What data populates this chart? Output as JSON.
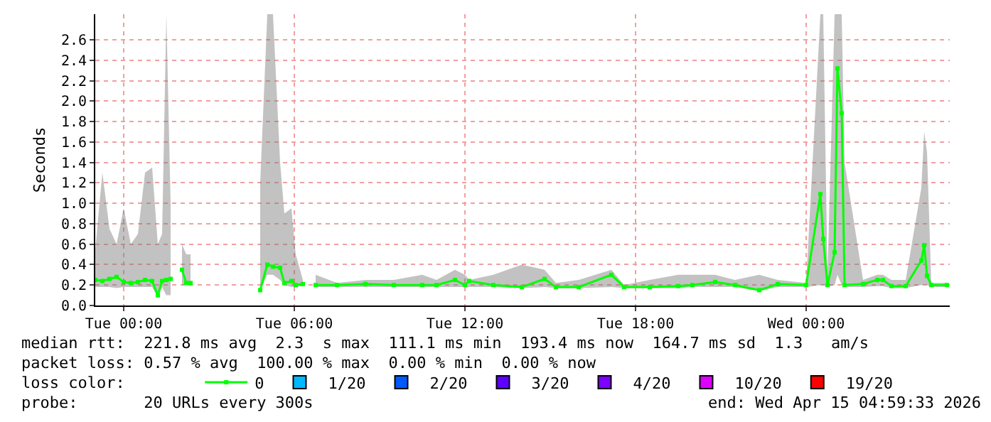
{
  "chart_data": {
    "type": "line",
    "ylabel": "Seconds",
    "x": [
      "2026-04-13T23:00",
      "2026-04-13T23:15",
      "2026-04-13T23:30",
      "2026-04-13T23:45",
      "2026-04-14T00:00",
      "2026-04-14T00:15",
      "2026-04-14T00:30",
      "2026-04-14T00:45",
      "2026-04-14T01:00",
      "2026-04-14T01:12",
      "2026-04-14T01:21",
      "2026-04-14T01:30",
      "2026-04-14T01:39",
      "2026-04-14T01:48",
      "2026-04-14T02:03",
      "2026-04-14T02:12",
      "2026-04-14T02:21",
      "2026-04-14T02:30",
      "2026-04-14T04:48",
      "2026-04-14T05:03",
      "2026-04-14T05:15",
      "2026-04-14T05:30",
      "2026-04-14T05:39",
      "2026-04-14T05:54",
      "2026-04-14T06:03",
      "2026-04-14T06:18",
      "2026-04-14T06:30",
      "2026-04-14T06:45",
      "2026-04-14T07:30",
      "2026-04-14T08:30",
      "2026-04-14T09:30",
      "2026-04-14T10:30",
      "2026-04-14T11:00",
      "2026-04-14T11:39",
      "2026-04-14T12:00",
      "2026-04-14T12:09",
      "2026-04-14T13:00",
      "2026-04-14T14:00",
      "2026-04-14T14:48",
      "2026-04-14T15:12",
      "2026-04-14T16:00",
      "2026-04-14T17:09",
      "2026-04-14T17:36",
      "2026-04-14T18:30",
      "2026-04-14T19:30",
      "2026-04-14T20:00",
      "2026-04-14T20:48",
      "2026-04-14T21:30",
      "2026-04-14T22:21",
      "2026-04-14T23:00",
      "2026-04-15T00:00",
      "2026-04-15T00:30",
      "2026-04-15T00:36",
      "2026-04-15T00:45",
      "2026-04-15T01:00",
      "2026-04-15T01:06",
      "2026-04-15T01:15",
      "2026-04-15T01:21",
      "2026-04-15T02:00",
      "2026-04-15T02:30",
      "2026-04-15T02:42",
      "2026-04-15T03:00",
      "2026-04-15T03:30",
      "2026-04-15T04:03",
      "2026-04-15T04:09",
      "2026-04-15T04:15",
      "2026-04-15T04:24",
      "2026-04-15T04:57"
    ],
    "series": [
      {
        "name": "0",
        "color": "#00ff00",
        "values": [
          0.25,
          0.24,
          0.26,
          0.28,
          0.23,
          0.22,
          0.23,
          0.25,
          0.24,
          0.1,
          0.24,
          0.25,
          0.26,
          null,
          0.35,
          0.22,
          0.22,
          null,
          0.15,
          0.4,
          0.38,
          0.37,
          0.22,
          0.24,
          0.2,
          0.21,
          null,
          0.2,
          0.2,
          0.21,
          0.2,
          0.2,
          0.2,
          0.25,
          0.2,
          0.24,
          0.2,
          0.18,
          0.26,
          0.18,
          0.18,
          0.3,
          0.18,
          0.18,
          0.19,
          0.2,
          0.23,
          0.2,
          0.15,
          0.21,
          0.2,
          1.09,
          0.65,
          0.2,
          0.52,
          2.32,
          1.88,
          0.2,
          0.21,
          0.25,
          0.25,
          0.19,
          0.19,
          0.44,
          0.59,
          0.29,
          0.2,
          0.2
        ],
        "lower": [
          0.18,
          0.18,
          0.18,
          0.17,
          0.18,
          0.18,
          0.18,
          0.18,
          0.18,
          0.08,
          0.18,
          0.1,
          0.1,
          null,
          0.2,
          0.2,
          0.2,
          null,
          0.15,
          0.3,
          0.3,
          0.25,
          0.2,
          0.18,
          0.18,
          0.19,
          null,
          0.18,
          0.18,
          0.18,
          0.18,
          0.18,
          0.18,
          0.18,
          0.18,
          0.18,
          0.18,
          0.17,
          0.18,
          0.17,
          0.17,
          0.18,
          0.17,
          0.17,
          0.17,
          0.18,
          0.18,
          0.18,
          0.14,
          0.18,
          0.18,
          0.2,
          0.2,
          0.18,
          0.2,
          0.3,
          0.2,
          0.18,
          0.18,
          0.19,
          0.19,
          0.17,
          0.17,
          0.2,
          0.2,
          0.2,
          0.18,
          0.18
        ],
        "upper": [
          0.55,
          1.3,
          0.75,
          0.6,
          0.95,
          0.6,
          0.7,
          1.3,
          1.35,
          0.6,
          0.7,
          2.85,
          1.0,
          null,
          0.6,
          0.5,
          0.5,
          null,
          1.2,
          2.85,
          2.85,
          1.4,
          0.9,
          0.95,
          0.5,
          0.25,
          null,
          0.3,
          0.22,
          0.25,
          0.25,
          0.3,
          0.25,
          0.35,
          0.3,
          0.25,
          0.3,
          0.4,
          0.35,
          0.22,
          0.25,
          0.35,
          0.2,
          0.25,
          0.3,
          0.3,
          0.3,
          0.25,
          0.3,
          0.25,
          0.22,
          2.85,
          2.85,
          0.3,
          2.85,
          2.85,
          2.85,
          1.4,
          0.25,
          0.3,
          0.3,
          0.25,
          0.25,
          1.15,
          1.7,
          1.5,
          0.22,
          0.22
        ]
      },
      {
        "name": "1/20",
        "color": "#00b8ff",
        "values": [
          null,
          null,
          null,
          null,
          null,
          null,
          null,
          null,
          null,
          null,
          null,
          null,
          null,
          null,
          null,
          null,
          null,
          null,
          null,
          null,
          null,
          null,
          null,
          null,
          null,
          null,
          null,
          null,
          null,
          null,
          null,
          null,
          null,
          null,
          null,
          null,
          null,
          null,
          null,
          null,
          null,
          null,
          null,
          null,
          null,
          null,
          null,
          null,
          null,
          null,
          null,
          null,
          null,
          null,
          null,
          null,
          null,
          null,
          null,
          null,
          null,
          null,
          null,
          null,
          null,
          null,
          null,
          null
        ]
      },
      {
        "name": "2/20",
        "color": "#0059ff",
        "values": [
          null,
          null,
          null,
          null,
          null,
          null,
          null,
          null,
          null,
          null,
          null,
          null,
          null,
          null,
          null,
          null,
          null,
          null,
          null,
          null,
          null,
          null,
          null,
          null,
          null,
          null,
          null,
          null,
          null,
          null,
          null,
          null,
          null,
          null,
          null,
          null,
          null,
          null,
          null,
          null,
          null,
          null,
          null,
          null,
          null,
          null,
          null,
          null,
          null,
          null,
          null,
          null,
          null,
          null,
          null,
          null,
          null,
          null,
          null,
          null,
          null,
          null,
          null,
          null,
          null,
          null,
          null,
          null
        ]
      },
      {
        "name": "3/20",
        "color": "#5e00ff",
        "values": [
          null,
          null,
          null,
          null,
          null,
          null,
          null,
          null,
          null,
          null,
          null,
          null,
          null,
          null,
          null,
          null,
          null,
          null,
          null,
          null,
          null,
          null,
          null,
          null,
          null,
          null,
          null,
          null,
          null,
          null,
          null,
          null,
          null,
          null,
          null,
          null,
          null,
          null,
          null,
          null,
          null,
          null,
          null,
          null,
          null,
          null,
          null,
          null,
          null,
          null,
          null,
          null,
          null,
          null,
          null,
          null,
          null,
          null,
          null,
          null,
          null,
          null,
          null,
          null,
          null,
          null,
          null,
          null
        ]
      },
      {
        "name": "4/20",
        "color": "#7e00ff",
        "values": [
          null,
          null,
          null,
          null,
          null,
          null,
          null,
          null,
          null,
          null,
          null,
          null,
          null,
          null,
          null,
          null,
          null,
          null,
          null,
          null,
          null,
          null,
          null,
          null,
          null,
          null,
          null,
          null,
          null,
          null,
          null,
          null,
          null,
          null,
          null,
          null,
          null,
          null,
          null,
          null,
          null,
          null,
          null,
          null,
          null,
          null,
          null,
          null,
          null,
          null,
          null,
          null,
          null,
          null,
          null,
          null,
          null,
          null,
          null,
          null,
          null,
          null,
          null,
          null,
          null,
          null,
          null,
          null
        ]
      },
      {
        "name": "10/20",
        "color": "#dd00ff",
        "values": [
          null,
          null,
          null,
          null,
          null,
          null,
          null,
          null,
          null,
          null,
          null,
          null,
          null,
          null,
          null,
          null,
          null,
          null,
          null,
          null,
          null,
          null,
          null,
          null,
          null,
          null,
          null,
          null,
          null,
          null,
          null,
          null,
          null,
          null,
          null,
          null,
          null,
          null,
          null,
          null,
          null,
          null,
          null,
          null,
          null,
          null,
          null,
          null,
          null,
          null,
          null,
          null,
          null,
          null,
          null,
          null,
          null,
          null,
          null,
          null,
          null,
          null,
          null,
          null,
          null,
          null,
          null,
          null
        ]
      },
      {
        "name": "19/20",
        "color": "#ff0000",
        "values": [
          null,
          null,
          null,
          null,
          null,
          null,
          null,
          null,
          null,
          null,
          null,
          null,
          null,
          null,
          null,
          null,
          null,
          null,
          null,
          null,
          null,
          null,
          null,
          null,
          null,
          null,
          null,
          null,
          null,
          null,
          null,
          null,
          null,
          null,
          null,
          null,
          null,
          null,
          null,
          null,
          null,
          null,
          null,
          null,
          null,
          null,
          null,
          null,
          null,
          null,
          null,
          null,
          null,
          null,
          null,
          null,
          null,
          null,
          null,
          null,
          null,
          null,
          null,
          null,
          null,
          null,
          null,
          null
        ]
      }
    ],
    "xlim": [
      "2026-04-13T23:00",
      "2026-04-15T05:03"
    ],
    "xticks": [
      {
        "value": "2026-04-14T00:00",
        "label": "Tue 00:00"
      },
      {
        "value": "2026-04-14T06:00",
        "label": "Tue 06:00"
      },
      {
        "value": "2026-04-14T12:00",
        "label": "Tue 12:00"
      },
      {
        "value": "2026-04-14T18:00",
        "label": "Tue 18:00"
      },
      {
        "value": "2026-04-15T00:00",
        "label": "Wed 00:00"
      }
    ],
    "ylim": [
      0,
      2.85
    ],
    "yticks": [
      {
        "value": 0,
        "label": "0.0"
      },
      {
        "value": 0.2,
        "label": "0.2"
      },
      {
        "value": 0.4,
        "label": "0.4"
      },
      {
        "value": 0.6,
        "label": "0.6"
      },
      {
        "value": 0.8,
        "label": "0.8"
      },
      {
        "value": 1.0,
        "label": "1.0"
      },
      {
        "value": 1.2,
        "label": "1.2"
      },
      {
        "value": 1.4,
        "label": "1.4"
      },
      {
        "value": 1.6,
        "label": "1.6"
      },
      {
        "value": 1.8,
        "label": "1.8"
      },
      {
        "value": 2.0,
        "label": "2.0"
      },
      {
        "value": 2.2,
        "label": "2.2"
      },
      {
        "value": 2.4,
        "label": "2.4"
      },
      {
        "value": 2.6,
        "label": "2.6"
      }
    ],
    "grid": true,
    "legend": "bottom",
    "legend_title": "loss color:",
    "marker": "square",
    "line_style": "solid",
    "annotations": [
      "median rtt:  221.8 ms avg  2.3  s max  111.1 ms min  193.4 ms now  164.7 ms sd  1.3   am/s",
      "packet loss: 0.57 % avg  100.00 % max  0.00 % min  0.00 % now",
      "probe:       20 URLs every 300s",
      "end: Wed Apr 15 04:59:33 2026"
    ]
  }
}
